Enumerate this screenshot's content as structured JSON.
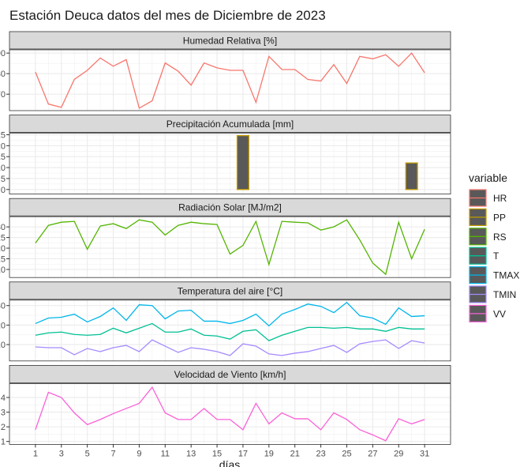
{
  "title": "Estación Deuca datos del mes de Diciembre de 2023",
  "xlabel": "días",
  "legend_title": "variable",
  "chart_data": [
    {
      "type": "line",
      "title": "Humedad Relativa [%]",
      "x": [
        1,
        2,
        3,
        4,
        5,
        6,
        7,
        8,
        9,
        10,
        11,
        12,
        13,
        14,
        15,
        16,
        17,
        18,
        19,
        20,
        21,
        22,
        23,
        24,
        25,
        26,
        27,
        28,
        29,
        30,
        31
      ],
      "xlim": [
        -1,
        33
      ],
      "xticks": [
        1,
        3,
        5,
        7,
        9,
        11,
        13,
        15,
        17,
        19,
        21,
        23,
        25,
        27,
        29,
        31
      ],
      "ylim": [
        62,
        91.6
      ],
      "yticks": [
        70,
        80,
        90
      ],
      "grid": true,
      "series": [
        {
          "name": "HR",
          "color": "#F8766D",
          "values": [
            80.8,
            65.2,
            63.6,
            77.2,
            81.6,
            87.6,
            83.6,
            86.8,
            63.2,
            66.8,
            85.2,
            81.2,
            74.4,
            85.2,
            82.8,
            81.6,
            81.6,
            66,
            88.4,
            82,
            82,
            77.2,
            76.4,
            84.4,
            75.2,
            88.4,
            87.2,
            89.2,
            83.6,
            90,
            80.4
          ]
        }
      ]
    },
    {
      "type": "bar",
      "title": "Precipitación Acumulada [mm]",
      "x": [
        1,
        2,
        3,
        4,
        5,
        6,
        7,
        8,
        9,
        10,
        11,
        12,
        13,
        14,
        15,
        16,
        17,
        18,
        19,
        20,
        21,
        22,
        23,
        24,
        25,
        26,
        27,
        28,
        29,
        30,
        31
      ],
      "xlim": [
        -1,
        33
      ],
      "xticks": [
        1,
        3,
        5,
        7,
        9,
        11,
        13,
        15,
        17,
        19,
        21,
        23,
        25,
        27,
        29,
        31
      ],
      "ylim": [
        -2.1,
        25.7
      ],
      "yticks": [
        0,
        5,
        10,
        15,
        20,
        25
      ],
      "grid": true,
      "series": [
        {
          "name": "PP",
          "color": "#C49A00",
          "values": [
            0,
            0,
            0,
            0,
            0,
            0,
            0,
            0,
            0,
            0,
            0,
            0,
            0,
            0,
            0,
            0,
            24.6,
            0,
            0,
            0,
            0,
            0,
            0,
            0,
            0,
            0,
            0,
            0,
            0,
            12.1,
            0
          ]
        }
      ]
    },
    {
      "type": "line",
      "title": "Radiación Solar [MJ/m2]",
      "x": [
        1,
        2,
        3,
        4,
        5,
        6,
        7,
        8,
        9,
        10,
        11,
        12,
        13,
        14,
        15,
        16,
        17,
        18,
        19,
        20,
        21,
        22,
        23,
        24,
        25,
        26,
        27,
        28,
        29,
        30,
        31
      ],
      "xlim": [
        -1,
        33
      ],
      "xticks": [
        1,
        3,
        5,
        7,
        9,
        11,
        13,
        15,
        17,
        19,
        21,
        23,
        25,
        27,
        29,
        31
      ],
      "ylim": [
        6.2,
        34.8
      ],
      "yticks": [
        10,
        15,
        20,
        25,
        30
      ],
      "grid": true,
      "series": [
        {
          "name": "RS",
          "color": "#53B400",
          "values": [
            22.4,
            30.7,
            32.2,
            32.6,
            19.5,
            30.4,
            31.5,
            29.2,
            33.3,
            32.2,
            26.2,
            30.7,
            32.2,
            31.5,
            31.1,
            17.2,
            21.3,
            32.6,
            12.3,
            32.6,
            32.2,
            31.9,
            28.5,
            30,
            33.3,
            23.9,
            13,
            7.7,
            32.2,
            15,
            28.9
          ]
        }
      ]
    },
    {
      "type": "line",
      "title": "Temperatura del aire [°C]",
      "x": [
        1,
        2,
        3,
        4,
        5,
        6,
        7,
        8,
        9,
        10,
        11,
        12,
        13,
        14,
        15,
        16,
        17,
        18,
        19,
        20,
        21,
        22,
        23,
        24,
        25,
        26,
        27,
        28,
        29,
        30,
        31
      ],
      "xlim": [
        -1,
        33
      ],
      "xticks": [
        1,
        3,
        5,
        7,
        9,
        11,
        13,
        15,
        17,
        19,
        21,
        23,
        25,
        27,
        29,
        31
      ],
      "ylim": [
        1.6,
        32.8
      ],
      "yticks": [
        10,
        20,
        30
      ],
      "grid": true,
      "series": [
        {
          "name": "T",
          "color": "#00C094",
          "values": [
            14.8,
            16,
            16.4,
            15.2,
            14.8,
            15.2,
            18.4,
            16,
            18.4,
            20.8,
            16.4,
            16.4,
            18,
            14.8,
            14.4,
            12.8,
            16.8,
            17.6,
            12,
            14.8,
            16.8,
            18.8,
            18.8,
            18.4,
            18.8,
            18,
            18,
            16.8,
            18.8,
            18,
            18
          ]
        },
        {
          "name": "TMAX",
          "color": "#00B6EB",
          "values": [
            20.8,
            23.6,
            24,
            25.6,
            21.6,
            24.4,
            28.8,
            22.4,
            30.4,
            30,
            23.2,
            27.2,
            27.6,
            22,
            22,
            20.8,
            22.4,
            25.6,
            19.6,
            25.6,
            28,
            30.8,
            29.6,
            26.4,
            31.6,
            24.8,
            23.6,
            20.4,
            28.8,
            24.4,
            24.8
          ]
        },
        {
          "name": "TMIN",
          "color": "#A58AFF",
          "values": [
            8.8,
            8.4,
            8.4,
            4.8,
            8,
            6.4,
            8.4,
            9.6,
            6.4,
            12.4,
            9.2,
            6,
            8.4,
            7.6,
            6.4,
            4.4,
            10.4,
            9.2,
            5.2,
            4.4,
            5.6,
            6.4,
            8,
            9.6,
            6,
            10.4,
            11.6,
            12.4,
            8,
            12,
            10.8
          ]
        }
      ]
    },
    {
      "type": "line",
      "title": "Velocidad de Viento [km/h]",
      "x": [
        1,
        2,
        3,
        4,
        5,
        6,
        7,
        8,
        9,
        10,
        11,
        12,
        13,
        14,
        15,
        16,
        17,
        18,
        19,
        20,
        21,
        22,
        23,
        24,
        25,
        26,
        27,
        28,
        29,
        30,
        31
      ],
      "xlim": [
        -1,
        33
      ],
      "xticks": [
        1,
        3,
        5,
        7,
        9,
        11,
        13,
        15,
        17,
        19,
        21,
        23,
        25,
        27,
        29,
        31
      ],
      "ylim": [
        0.8,
        4.95
      ],
      "yticks": [
        1,
        2,
        3,
        4
      ],
      "grid": true,
      "series": [
        {
          "name": "VV",
          "color": "#FB61D7",
          "values": [
            1.8,
            4.35,
            4,
            2.95,
            2.15,
            2.5,
            2.9,
            3.25,
            3.6,
            4.7,
            2.95,
            2.5,
            2.5,
            3.25,
            2.5,
            2.5,
            1.8,
            3.6,
            2.2,
            2.95,
            2.55,
            2.55,
            1.8,
            2.95,
            2.5,
            1.8,
            1.45,
            1.05,
            2.55,
            2.2,
            2.5
          ]
        }
      ]
    }
  ]
}
